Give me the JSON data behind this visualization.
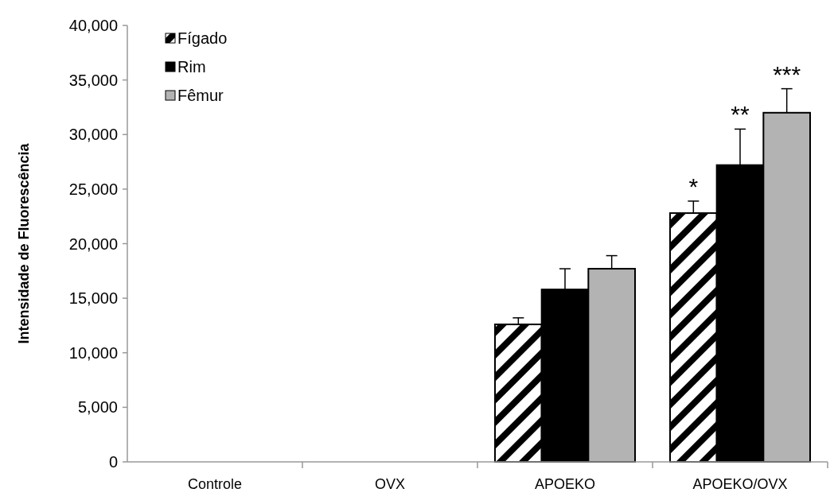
{
  "chart_data": {
    "type": "bar",
    "ylabel": "Intensidade de Fluorescência",
    "categories": [
      "Controle",
      "OVX",
      "APOEKO",
      "APOEKO/OVX"
    ],
    "series": [
      {
        "name": "Fígado",
        "color": "#000000",
        "values": [
          0,
          0,
          12600,
          22800
        ],
        "errors": [
          0,
          0,
          600,
          1100
        ]
      },
      {
        "name": "Rim",
        "color": "#000000",
        "values": [
          0,
          0,
          15800,
          27200
        ],
        "errors": [
          0,
          0,
          1900,
          3300
        ]
      },
      {
        "name": "Fêmur",
        "color": "#b3b3b3",
        "values": [
          0,
          0,
          17700,
          32000
        ],
        "errors": [
          0,
          0,
          1200,
          2200
        ]
      }
    ],
    "ylim": [
      0,
      40000
    ],
    "yticks": [
      {
        "value": 0,
        "label": "0"
      },
      {
        "value": 5000,
        "label": "5,000"
      },
      {
        "value": 10000,
        "label": "10,000"
      },
      {
        "value": 15000,
        "label": "15,000"
      },
      {
        "value": 20000,
        "label": "20,000"
      },
      {
        "value": 25000,
        "label": "25,000"
      },
      {
        "value": 30000,
        "label": "30,000"
      },
      {
        "value": 35000,
        "label": "35,000"
      },
      {
        "value": 40000,
        "label": "40,000"
      }
    ],
    "annotations": [
      "*",
      "**",
      "***"
    ],
    "legend": "top left",
    "grid": false
  }
}
